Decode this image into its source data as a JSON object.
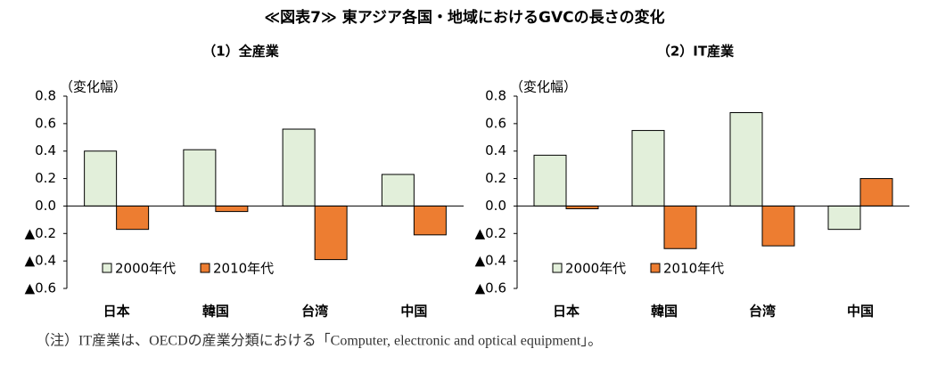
{
  "title": "≪図表7≫ 東アジア各国・地域におけるGVCの長さの変化",
  "note": "（注）IT産業は、OECDの産業分類における「Computer, electronic and optical equipment」。",
  "chart_data": [
    {
      "type": "bar",
      "title": "（1）全産業",
      "ylabel": "（変化幅）",
      "categories": [
        "日本",
        "韓国",
        "台湾",
        "中国"
      ],
      "series": [
        {
          "name": "2000年代",
          "color": "#e2efda",
          "values": [
            0.4,
            0.41,
            0.56,
            0.23
          ]
        },
        {
          "name": "2010年代",
          "color": "#ed7d31",
          "values": [
            -0.17,
            -0.04,
            -0.39,
            -0.21
          ]
        }
      ],
      "ylim": [
        -0.6,
        0.8
      ],
      "yticks": [
        0.8,
        0.6,
        0.4,
        0.2,
        {
          "value": 0,
          "label": "0.0"
        },
        {
          "value": -0.2,
          "label": "▲0.2"
        },
        {
          "value": -0.4,
          "label": "▲0.4"
        },
        {
          "value": -0.6,
          "label": "▲0.6"
        }
      ]
    },
    {
      "type": "bar",
      "title": "（2）IT産業",
      "ylabel": "（変化幅）",
      "categories": [
        "日本",
        "韓国",
        "台湾",
        "中国"
      ],
      "series": [
        {
          "name": "2000年代",
          "color": "#e2efda",
          "values": [
            0.37,
            0.55,
            0.68,
            -0.17
          ]
        },
        {
          "name": "2010年代",
          "color": "#ed7d31",
          "values": [
            -0.02,
            -0.31,
            -0.29,
            0.2
          ]
        }
      ],
      "ylim": [
        -0.6,
        0.8
      ],
      "yticks": [
        0.8,
        0.6,
        0.4,
        0.2,
        {
          "value": 0,
          "label": "0.0"
        },
        {
          "value": -0.2,
          "label": "▲0.2"
        },
        {
          "value": -0.4,
          "label": "▲0.4"
        },
        {
          "value": -0.6,
          "label": "▲0.6"
        }
      ]
    }
  ]
}
